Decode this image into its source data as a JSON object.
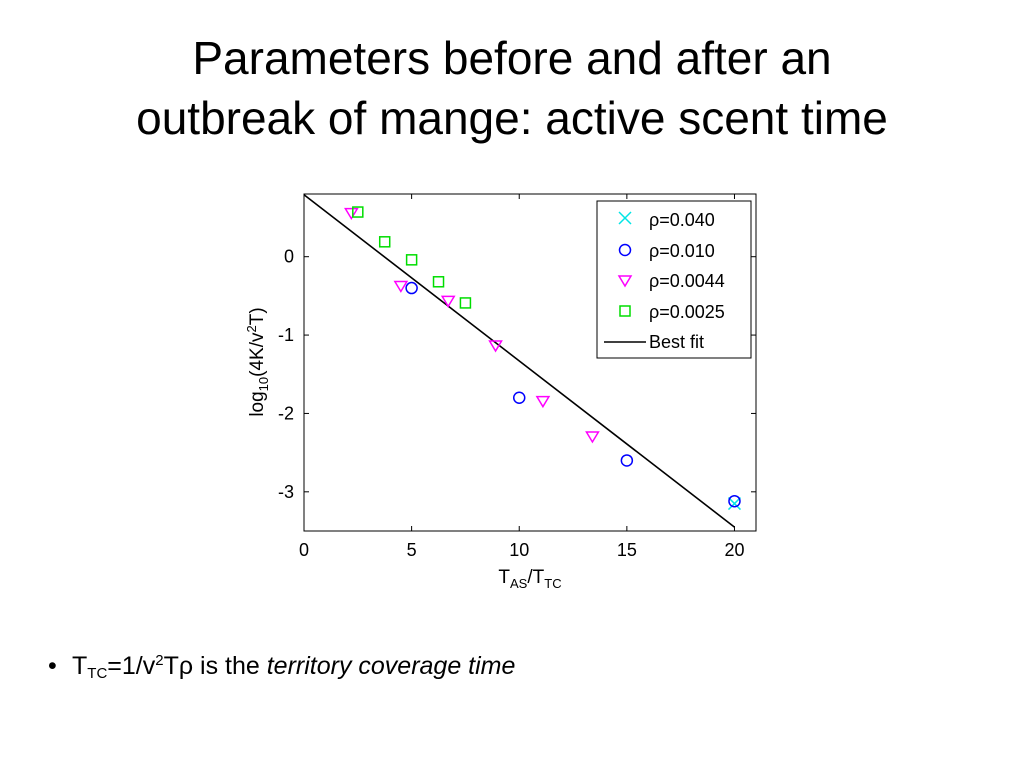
{
  "slide": {
    "title_line1": "Parameters before and after an",
    "title_line2": "outbreak of mange: active scent time"
  },
  "bullet": {
    "marker": "•",
    "t_main": "T",
    "t_sub": "TC",
    "eq_pre": "=1/v",
    "eq_sup": "2",
    "eq_post": "Tρ is the ",
    "emphasis": "territory coverage time"
  },
  "chart_data": {
    "type": "scatter",
    "xlabel": {
      "main": "T",
      "sub1": "AS",
      "mid": "/T",
      "sub2": "TC"
    },
    "ylabel": {
      "pre": "log",
      "sub": "10",
      "mid": "(4K/v",
      "sup": "2",
      "post": "T)"
    },
    "xlim": [
      0,
      21
    ],
    "ylim": [
      -3.5,
      0.8
    ],
    "xticks": [
      0,
      5,
      10,
      15,
      20
    ],
    "yticks": [
      0,
      -1,
      -2,
      -3
    ],
    "grid": false,
    "legend_position": "top-right",
    "series": [
      {
        "name": "ρ=0.040",
        "marker": "x",
        "color": "#00e5e5",
        "points": [
          [
            20,
            -3.15
          ]
        ]
      },
      {
        "name": "ρ=0.010",
        "marker": "o",
        "color": "#0000ff",
        "points": [
          [
            5,
            -0.4
          ],
          [
            10,
            -1.8
          ],
          [
            15,
            -2.6
          ],
          [
            20,
            -3.12
          ]
        ]
      },
      {
        "name": "ρ=0.0044",
        "marker": "triangle-down",
        "color": "#ff00ff",
        "points": [
          [
            2.2,
            0.55
          ],
          [
            4.5,
            -0.38
          ],
          [
            6.7,
            -0.57
          ],
          [
            8.9,
            -1.14
          ],
          [
            11.1,
            -1.85
          ],
          [
            13.4,
            -2.3
          ]
        ]
      },
      {
        "name": "ρ=0.0025",
        "marker": "square",
        "color": "#00dd00",
        "points": [
          [
            2.5,
            0.57
          ],
          [
            3.75,
            0.19
          ],
          [
            5.0,
            -0.04
          ],
          [
            6.25,
            -0.32
          ],
          [
            7.5,
            -0.59
          ]
        ]
      }
    ],
    "fit": {
      "name": "Best fit",
      "color": "#000000",
      "x": [
        0,
        20
      ],
      "y": [
        0.79,
        -3.45
      ]
    }
  }
}
